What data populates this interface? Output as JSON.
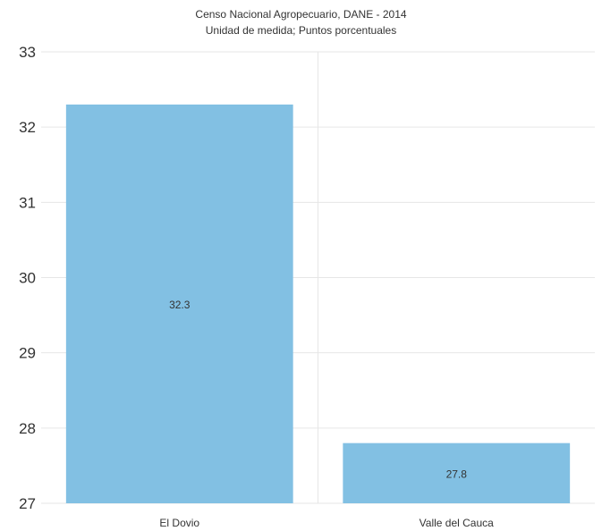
{
  "chart_data": {
    "type": "bar",
    "title": "",
    "subtitle": [
      "Censo Nacional Agropecuario, DANE - 2014",
      "Unidad de medida; Puntos porcentuales"
    ],
    "categories": [
      "El Dovio",
      "Valle del Cauca"
    ],
    "series": [
      {
        "values": [
          32.3,
          27.8
        ]
      }
    ],
    "data_labels": [
      "32.3",
      "27.8"
    ],
    "xlabel": "",
    "ylabel": "",
    "ylim": [
      27,
      33
    ],
    "yticks": [
      27,
      28,
      29,
      30,
      31,
      32,
      33
    ],
    "grid": true,
    "legend": "none",
    "bar_color": "#82c0e3",
    "gridline_color": "#e6e6e6"
  }
}
